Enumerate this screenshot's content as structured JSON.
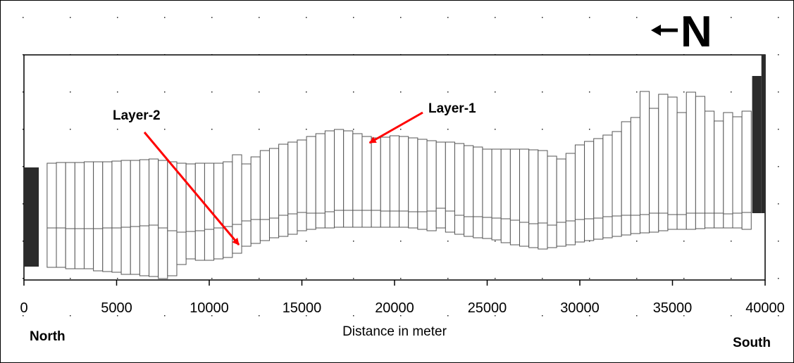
{
  "chart_data": {
    "type": "bar",
    "description_note": "",
    "xlabel": "Distance in meter",
    "xlim": [
      0,
      40000
    ],
    "xticks": [
      0,
      5000,
      10000,
      15000,
      20000,
      25000,
      30000,
      35000,
      40000
    ],
    "xtick_labels": [
      "0",
      "5000",
      "10000",
      "15000",
      "20000",
      "25000",
      "30000",
      "35000",
      "40000"
    ],
    "ylim": [
      0,
      320
    ],
    "left_label": "North",
    "right_label": "South",
    "north_arrow_label": "N",
    "grid": "dotted",
    "colors": {
      "cells": "#ffffff",
      "cell_edge": "#555555",
      "boundary": "#2b2b2b",
      "annotation": "#ff0000"
    },
    "annotations": [
      {
        "text": "Layer-1",
        "x": 18500,
        "y": 195
      },
      {
        "text": "Layer-2",
        "x": 11600,
        "y": 50
      }
    ],
    "columns": {
      "x": [
        1500,
        2000,
        2500,
        3000,
        3500,
        4000,
        4500,
        5000,
        5500,
        6000,
        6500,
        7000,
        7500,
        8000,
        8500,
        9000,
        9500,
        10000,
        10500,
        11000,
        11500,
        12000,
        12500,
        13000,
        13500,
        14000,
        14500,
        15000,
        15500,
        16000,
        16500,
        17000,
        17500,
        18000,
        18500,
        19000,
        19500,
        20000,
        20500,
        21000,
        21500,
        22000,
        22500,
        23000,
        23500,
        24000,
        24500,
        25000,
        25500,
        26000,
        26500,
        27000,
        27500,
        28000,
        28500,
        29000,
        29500,
        30000,
        30500,
        31000,
        31500,
        32000,
        32500,
        33000,
        33500,
        34000,
        34500,
        35000,
        35500,
        36000,
        36500,
        37000,
        37500,
        38000,
        38500,
        39000
      ],
      "top": [
        166,
        167,
        167,
        167,
        168,
        168,
        168,
        169,
        170,
        170,
        171,
        172,
        170,
        168,
        166,
        165,
        166,
        166,
        166,
        168,
        178,
        165,
        175,
        184,
        187,
        193,
        196,
        199,
        204,
        208,
        212,
        214,
        212,
        208,
        204,
        202,
        203,
        205,
        204,
        202,
        200,
        198,
        196,
        196,
        194,
        191,
        189,
        186,
        186,
        186,
        186,
        186,
        185,
        184,
        176,
        172,
        180,
        192,
        197,
        201,
        206,
        211,
        225,
        231,
        268,
        244,
        264,
        260,
        238,
        267,
        261,
        240,
        226,
        238,
        232,
        240
      ],
      "boundary": [
        74,
        74,
        73,
        73,
        73,
        73,
        74,
        74,
        75,
        76,
        77,
        78,
        74,
        70,
        68,
        69,
        70,
        72,
        74,
        76,
        79,
        84,
        86,
        86,
        88,
        92,
        94,
        96,
        95,
        95,
        97,
        99,
        99,
        99,
        99,
        99,
        98,
        98,
        98,
        97,
        97,
        98,
        102,
        98,
        92,
        90,
        90,
        89,
        88,
        87,
        85,
        82,
        80,
        81,
        78,
        82,
        84,
        86,
        87,
        88,
        90,
        91,
        92,
        92,
        93,
        95,
        95,
        93,
        93,
        95,
        95,
        95,
        95,
        94,
        95,
        96
      ],
      "bottom": [
        18,
        18,
        16,
        16,
        16,
        13,
        12,
        11,
        8,
        8,
        6,
        5,
        2,
        6,
        22,
        30,
        28,
        28,
        30,
        32,
        38,
        48,
        52,
        56,
        60,
        62,
        65,
        70,
        72,
        74,
        74,
        75,
        75,
        75,
        75,
        75,
        75,
        75,
        75,
        74,
        72,
        70,
        74,
        68,
        65,
        62,
        60,
        59,
        57,
        53,
        50,
        48,
        46,
        44,
        46,
        48,
        50,
        54,
        56,
        58,
        60,
        62,
        64,
        66,
        67,
        68,
        70,
        72,
        72,
        72,
        73,
        74,
        74,
        74,
        74,
        72
      ]
    },
    "boundary_blocks": [
      {
        "side": "left",
        "x0": 0,
        "x1": 800,
        "y0": 19,
        "y1": 160
      },
      {
        "side": "right",
        "x0": 39300,
        "x1": 39800,
        "y0": 95,
        "y1": 290
      },
      {
        "side": "right",
        "x0": 39800,
        "x1": 40000,
        "y0": 95,
        "y1": 320
      }
    ]
  }
}
